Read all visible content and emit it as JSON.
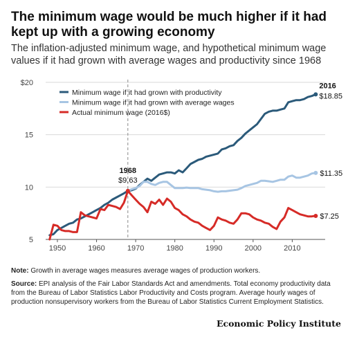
{
  "title": "The minimum wage would be much higher if it had kept up with a growing economy",
  "subtitle": "The inflation-adjusted minimum wage, and hypothetical minimum wage values if it had grown with average wages and productivity since 1968",
  "note": {
    "label": "Note:",
    "text": "Growth in average wages measures average wages of production workers."
  },
  "source": {
    "label": "Source:",
    "text": "EPI analysis of the Fair Labor Standards Act and amendments. Total economy productivity data from the Bureau of Labor Statistics Labor Productivity and Costs program. Average hourly wages of production nonsupervisory workers from the Bureau of Labor Statistics Current Employment Statistics."
  },
  "footer": "Economic Policy Institute",
  "chart_data": {
    "type": "line",
    "xlim": [
      1947,
      2017
    ],
    "ylim": [
      5,
      20
    ],
    "x_ticks": [
      1950,
      1960,
      1970,
      1980,
      1990,
      2000,
      2010
    ],
    "x_tick_labels": [
      "1950",
      "1960",
      "1970",
      "1980",
      "1990",
      "2000",
      "2010"
    ],
    "y_ticks": [
      5,
      10,
      15,
      20
    ],
    "y_tick_labels": [
      "5",
      "10",
      "15",
      "$20"
    ],
    "grid": "horizontal",
    "legend": "top-left",
    "reference_line": {
      "x": 1968,
      "style": "dashed"
    },
    "annotations": [
      {
        "year": "1968",
        "value": "$9.63"
      },
      {
        "year": "2016",
        "value": "$18.85"
      },
      {
        "value": "$11.35"
      },
      {
        "value": "$7.25"
      }
    ],
    "series": [
      {
        "name": "Minimum wage if it had grown with productivity",
        "color": "#2b5a7a",
        "x": [
          1948,
          1949,
          1950,
          1951,
          1952,
          1953,
          1954,
          1955,
          1956,
          1957,
          1958,
          1959,
          1960,
          1961,
          1962,
          1963,
          1964,
          1965,
          1966,
          1967,
          1968,
          1969,
          1970,
          1971,
          1972,
          1973,
          1974,
          1975,
          1976,
          1977,
          1978,
          1979,
          1980,
          1981,
          1982,
          1983,
          1984,
          1985,
          1986,
          1987,
          1988,
          1989,
          1990,
          1991,
          1992,
          1993,
          1994,
          1995,
          1996,
          1997,
          1998,
          1999,
          2000,
          2001,
          2002,
          2003,
          2004,
          2005,
          2006,
          2007,
          2008,
          2009,
          2010,
          2011,
          2012,
          2013,
          2014,
          2015,
          2016
        ],
        "y": [
          5.4,
          5.5,
          5.9,
          6.1,
          6.3,
          6.5,
          6.6,
          6.9,
          7.0,
          7.2,
          7.4,
          7.6,
          7.8,
          8.0,
          8.3,
          8.5,
          8.8,
          9.0,
          9.2,
          9.4,
          9.63,
          9.7,
          9.85,
          10.2,
          10.5,
          10.8,
          10.6,
          10.9,
          11.2,
          11.3,
          11.4,
          11.4,
          11.3,
          11.6,
          11.4,
          11.8,
          12.2,
          12.4,
          12.6,
          12.7,
          12.9,
          13.0,
          13.1,
          13.2,
          13.6,
          13.7,
          13.9,
          14.0,
          14.4,
          14.7,
          15.1,
          15.4,
          15.7,
          16.0,
          16.5,
          17.0,
          17.2,
          17.3,
          17.3,
          17.4,
          17.5,
          18.1,
          18.2,
          18.3,
          18.3,
          18.4,
          18.6,
          18.7,
          18.85
        ]
      },
      {
        "name": "Minimum wage if it had grown with average wages",
        "color": "#a7c5e3",
        "x": [
          1968,
          1969,
          1970,
          1971,
          1972,
          1973,
          1974,
          1975,
          1976,
          1977,
          1978,
          1979,
          1980,
          1981,
          1982,
          1983,
          1984,
          1985,
          1986,
          1987,
          1988,
          1989,
          1990,
          1991,
          1992,
          1993,
          1994,
          1995,
          1996,
          1997,
          1998,
          1999,
          2000,
          2001,
          2002,
          2003,
          2004,
          2005,
          2006,
          2007,
          2008,
          2009,
          2010,
          2011,
          2012,
          2013,
          2014,
          2015,
          2016
        ],
        "y": [
          9.63,
          9.8,
          9.9,
          10.1,
          10.5,
          10.5,
          10.3,
          10.2,
          10.4,
          10.5,
          10.5,
          10.2,
          9.9,
          9.9,
          9.9,
          9.95,
          9.9,
          9.9,
          9.9,
          9.8,
          9.75,
          9.7,
          9.6,
          9.55,
          9.6,
          9.6,
          9.65,
          9.7,
          9.75,
          9.9,
          10.1,
          10.2,
          10.3,
          10.4,
          10.6,
          10.6,
          10.55,
          10.5,
          10.6,
          10.7,
          10.7,
          11.0,
          11.1,
          10.9,
          10.9,
          11.0,
          11.1,
          11.3,
          11.35
        ]
      },
      {
        "name": "Actual minimum wage (2016$)",
        "color": "#d62b27",
        "x": [
          1948,
          1949,
          1950,
          1951,
          1952,
          1953,
          1954,
          1955,
          1956,
          1957,
          1958,
          1959,
          1960,
          1961,
          1962,
          1963,
          1964,
          1965,
          1966,
          1967,
          1968,
          1969,
          1970,
          1971,
          1972,
          1973,
          1974,
          1975,
          1976,
          1977,
          1978,
          1979,
          1980,
          1981,
          1982,
          1983,
          1984,
          1985,
          1986,
          1987,
          1988,
          1989,
          1990,
          1991,
          1992,
          1993,
          1994,
          1995,
          1996,
          1997,
          1998,
          1999,
          2000,
          2001,
          2002,
          2003,
          2004,
          2005,
          2006,
          2007,
          2008,
          2009,
          2010,
          2011,
          2012,
          2013,
          2014,
          2015,
          2016
        ],
        "y": [
          5.0,
          6.4,
          6.3,
          5.9,
          5.8,
          5.8,
          5.7,
          5.7,
          7.6,
          7.3,
          7.2,
          7.1,
          7.0,
          7.9,
          7.8,
          8.3,
          8.2,
          8.1,
          7.9,
          8.5,
          9.63,
          9.2,
          8.8,
          8.4,
          8.1,
          7.6,
          8.6,
          8.4,
          8.8,
          8.3,
          8.9,
          8.6,
          8.0,
          7.8,
          7.4,
          7.2,
          6.9,
          6.7,
          6.6,
          6.3,
          6.1,
          5.9,
          6.3,
          7.1,
          6.9,
          6.8,
          6.6,
          6.5,
          6.9,
          7.5,
          7.5,
          7.4,
          7.1,
          6.9,
          6.8,
          6.6,
          6.5,
          6.2,
          6.0,
          6.7,
          7.1,
          8.0,
          7.8,
          7.6,
          7.4,
          7.3,
          7.2,
          7.2,
          7.25
        ]
      }
    ]
  }
}
